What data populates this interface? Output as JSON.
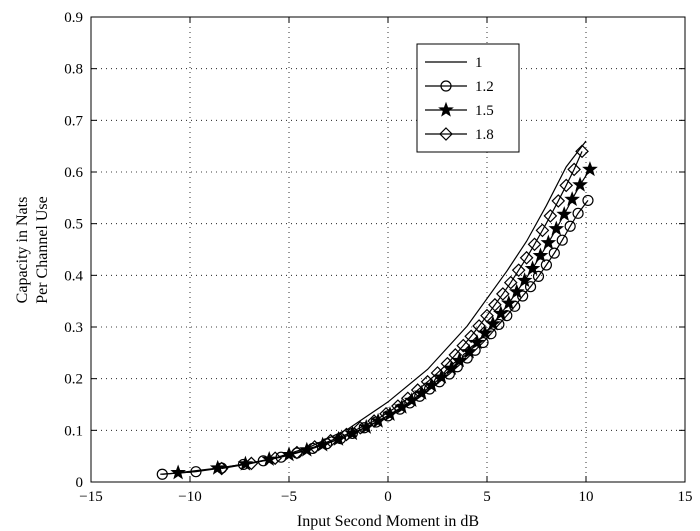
{
  "chart_data": {
    "type": "line",
    "title": "",
    "xlabel": "Input Second Moment in dB",
    "ylabel_lines": [
      "Capacity in Nats",
      "Per Channel Use"
    ],
    "xlim": [
      -15,
      15
    ],
    "ylim": [
      0,
      0.9
    ],
    "xticks": [
      -15,
      -10,
      -5,
      0,
      5,
      10,
      15
    ],
    "yticks": [
      0,
      0.1,
      0.2,
      0.3,
      0.4,
      0.5,
      0.6,
      0.7,
      0.8,
      0.9
    ],
    "grid": true,
    "legend_position": "top-right",
    "series": [
      {
        "name": "1",
        "marker": "none",
        "x": [
          -11.5,
          -10.0,
          -8.0,
          -6.0,
          -4.0,
          -2.0,
          0.0,
          2.0,
          4.0,
          6.0,
          7.0,
          8.0,
          9.0,
          10.0
        ],
        "y": [
          0.015,
          0.019,
          0.03,
          0.043,
          0.067,
          0.103,
          0.155,
          0.218,
          0.302,
          0.408,
          0.466,
          0.535,
          0.61,
          0.66
        ]
      },
      {
        "name": "1.2",
        "marker": "circle",
        "x": [
          -11.4,
          -9.7,
          -8.4,
          -7.3,
          -6.3,
          -5.4,
          -4.6,
          -3.8,
          -3.1,
          -2.4,
          -1.8,
          -1.2,
          -0.6,
          0.0,
          0.6,
          1.1,
          1.6,
          2.1,
          2.6,
          3.1,
          3.5,
          4.0,
          4.4,
          4.8,
          5.2,
          5.6,
          6.0,
          6.4,
          6.8,
          7.2,
          7.6,
          8.0,
          8.4,
          8.8,
          9.2,
          9.6,
          10.1
        ],
        "y": [
          0.015,
          0.02,
          0.027,
          0.034,
          0.041,
          0.048,
          0.056,
          0.065,
          0.074,
          0.084,
          0.094,
          0.105,
          0.116,
          0.128,
          0.141,
          0.153,
          0.166,
          0.18,
          0.194,
          0.209,
          0.223,
          0.24,
          0.255,
          0.27,
          0.287,
          0.305,
          0.322,
          0.34,
          0.36,
          0.378,
          0.398,
          0.42,
          0.443,
          0.468,
          0.495,
          0.52,
          0.545
        ]
      },
      {
        "name": "1.5",
        "marker": "star",
        "x": [
          -10.6,
          -8.6,
          -7.2,
          -6.0,
          -5.0,
          -4.1,
          -3.3,
          -2.5,
          -1.8,
          -1.1,
          -0.5,
          0.1,
          0.7,
          1.2,
          1.7,
          2.2,
          2.7,
          3.2,
          3.6,
          4.1,
          4.5,
          4.9,
          5.3,
          5.7,
          6.1,
          6.5,
          6.9,
          7.3,
          7.7,
          8.1,
          8.5,
          8.9,
          9.3,
          9.7,
          10.2
        ],
        "y": [
          0.018,
          0.027,
          0.035,
          0.044,
          0.053,
          0.062,
          0.072,
          0.083,
          0.094,
          0.106,
          0.118,
          0.131,
          0.145,
          0.158,
          0.172,
          0.187,
          0.203,
          0.22,
          0.235,
          0.252,
          0.27,
          0.288,
          0.306,
          0.326,
          0.346,
          0.368,
          0.39,
          0.413,
          0.438,
          0.463,
          0.49,
          0.518,
          0.547,
          0.575,
          0.605
        ]
      },
      {
        "name": "1.8",
        "marker": "diamond",
        "x": [
          -8.4,
          -6.9,
          -5.7,
          -4.6,
          -3.7,
          -2.9,
          -2.1,
          -1.4,
          -0.7,
          -0.1,
          0.5,
          1.0,
          1.5,
          2.0,
          2.5,
          3.0,
          3.4,
          3.8,
          4.2,
          4.6,
          5.0,
          5.4,
          5.8,
          6.2,
          6.6,
          7.0,
          7.4,
          7.8,
          8.2,
          8.6,
          9.0,
          9.4,
          9.8
        ],
        "y": [
          0.026,
          0.036,
          0.046,
          0.057,
          0.068,
          0.08,
          0.092,
          0.105,
          0.118,
          0.132,
          0.147,
          0.162,
          0.178,
          0.194,
          0.211,
          0.229,
          0.246,
          0.264,
          0.282,
          0.302,
          0.322,
          0.343,
          0.364,
          0.386,
          0.41,
          0.434,
          0.46,
          0.487,
          0.515,
          0.544,
          0.574,
          0.605,
          0.64
        ]
      }
    ]
  }
}
